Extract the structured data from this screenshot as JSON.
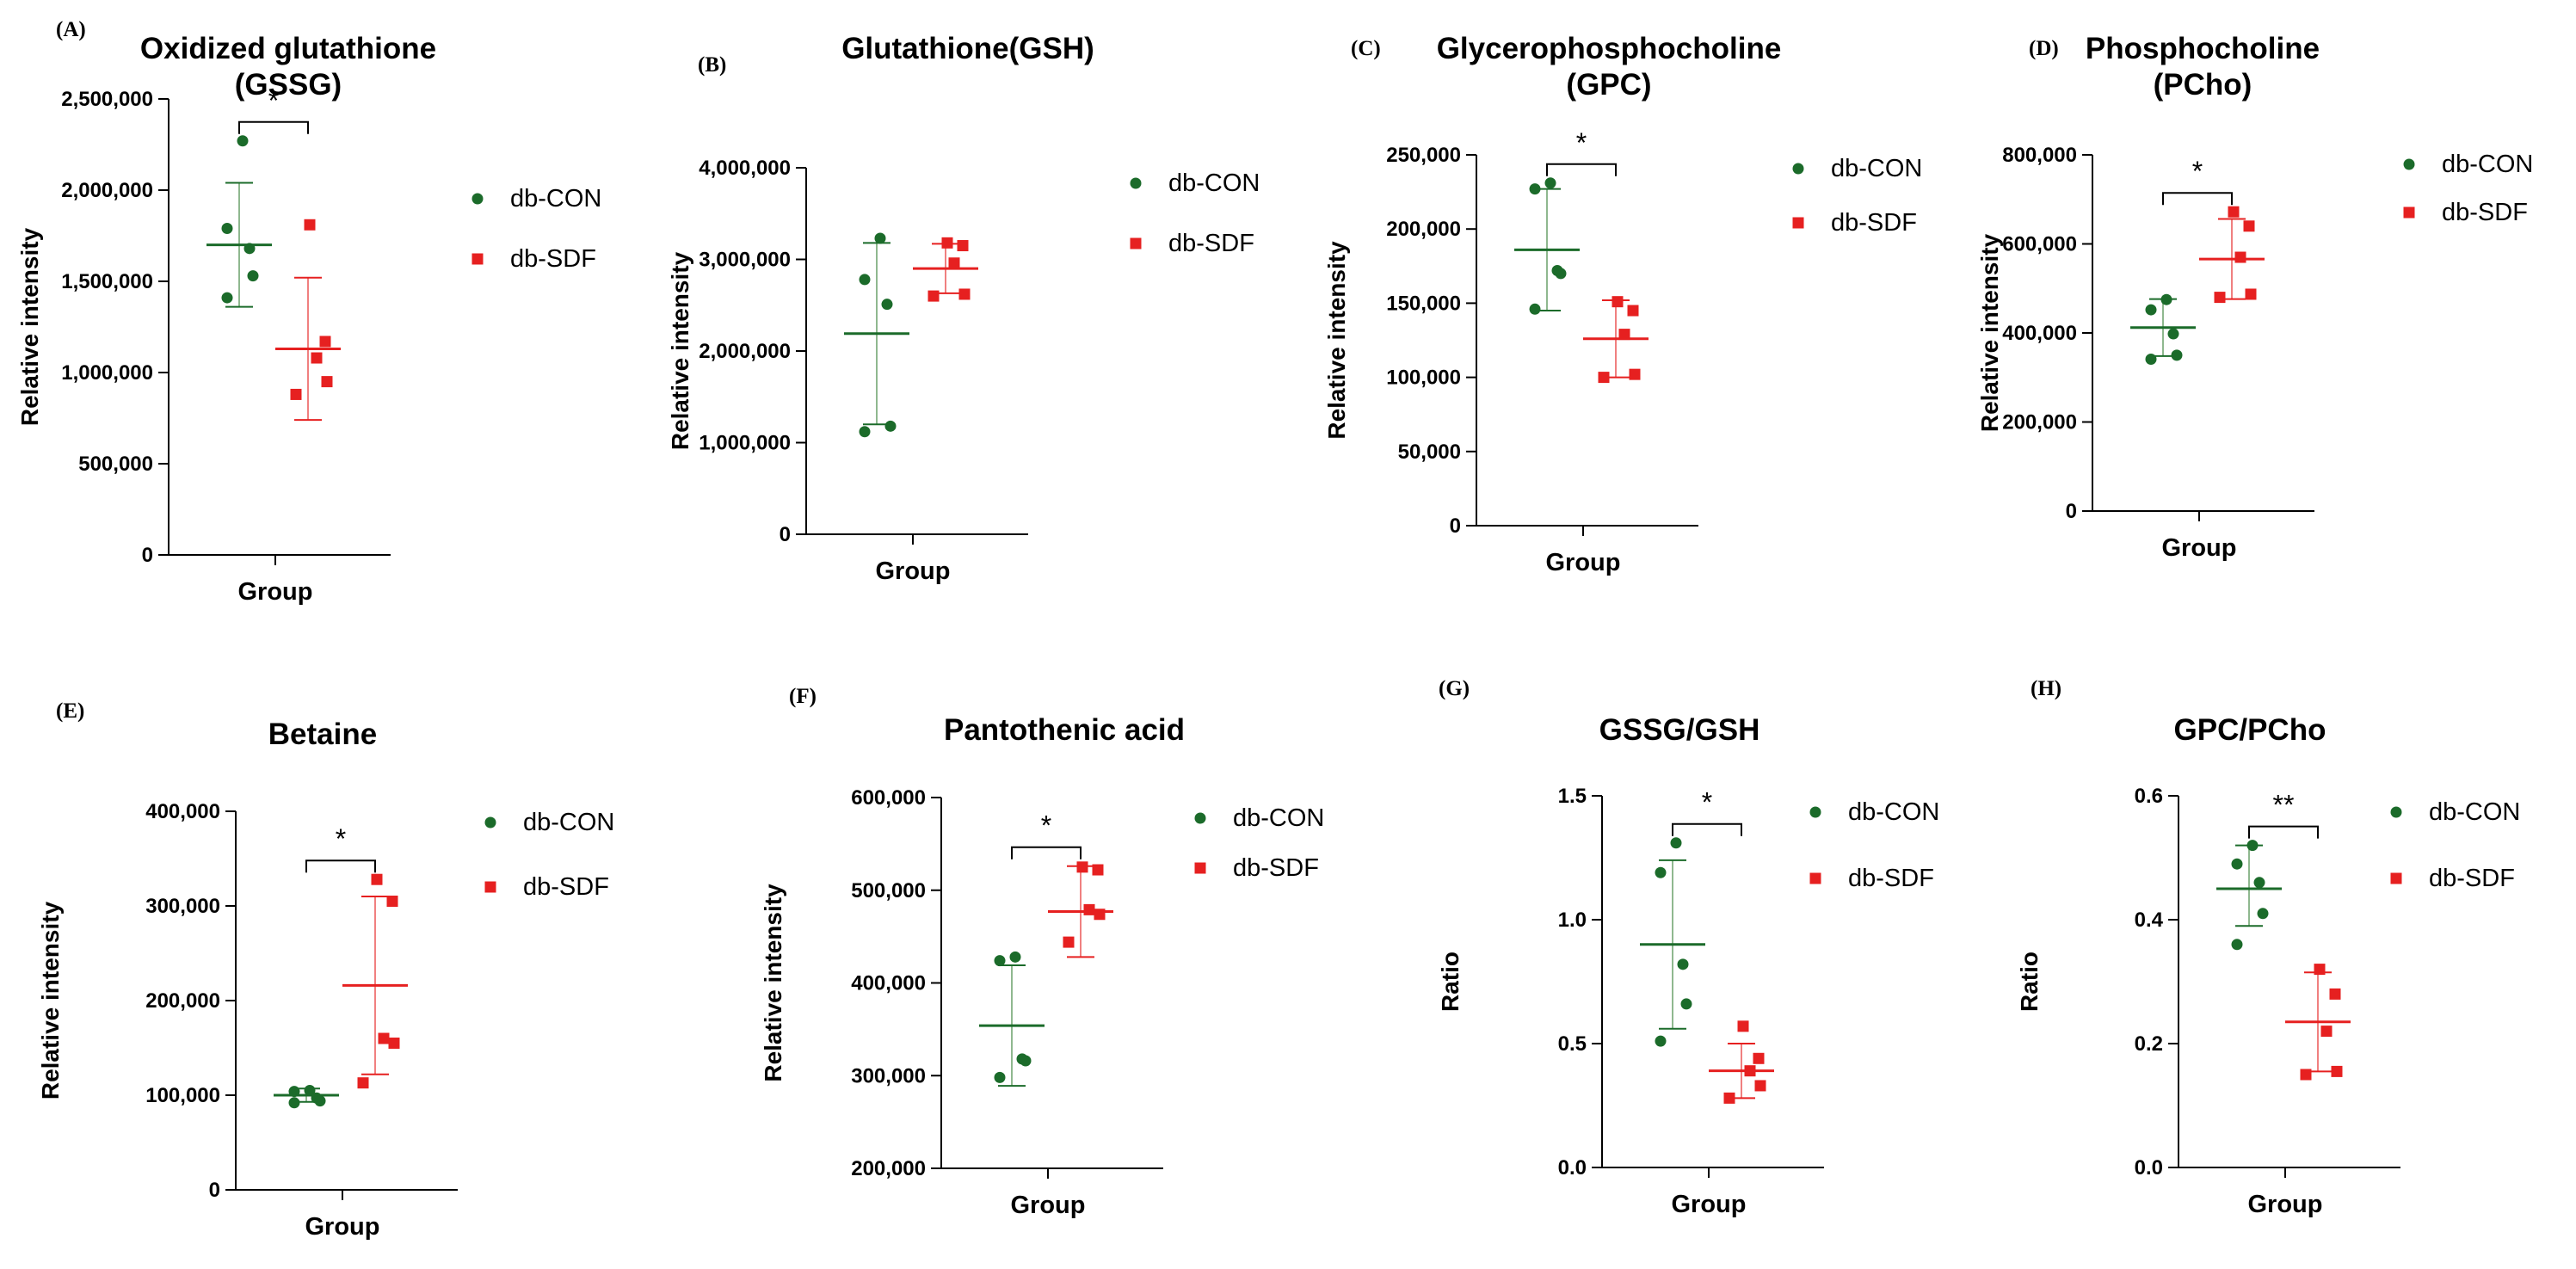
{
  "colors": {
    "con": "#1b6b2a",
    "con_light": "#8fb88f",
    "sdf": "#e62020",
    "sdf_light": "#f08080",
    "axis": "#000000"
  },
  "legend": {
    "con_label": "db-CON",
    "sdf_label": "db-SDF"
  },
  "chart_data": [
    {
      "type": "scatter",
      "panel": "(A)",
      "title_lines": [
        "Oxidized glutathione",
        "(GSSG)"
      ],
      "ylabel": "Relative intensity",
      "xlabel": "Group",
      "ylim": [
        0,
        2500000
      ],
      "yticks": [
        0,
        500000,
        1000000,
        1500000,
        2000000,
        2500000
      ],
      "ytick_labels": [
        "0",
        "500,000",
        "1,000,000",
        "1,500,000",
        "2,000,000",
        "2,500,000"
      ],
      "significance": "*",
      "series": [
        {
          "name": "db-CON",
          "values": [
            2270000,
            1790000,
            1680000,
            1530000,
            1410000
          ],
          "mean": 1700000,
          "sd_low": 1360000,
          "sd_high": 2040000
        },
        {
          "name": "db-SDF",
          "values": [
            1810000,
            1170000,
            1080000,
            950000,
            880000
          ],
          "mean": 1130000,
          "sd_low": 740000,
          "sd_high": 1520000
        }
      ]
    },
    {
      "type": "scatter",
      "panel": "(B)",
      "title_lines": [
        "Glutathione(GSH)"
      ],
      "ylabel": "Relative intensity",
      "xlabel": "Group",
      "ylim": [
        0,
        4000000
      ],
      "yticks": [
        0,
        1000000,
        2000000,
        3000000,
        4000000
      ],
      "ytick_labels": [
        "0",
        "1,000,000",
        "2,000,000",
        "3,000,000",
        "4,000,000"
      ],
      "significance": "",
      "series": [
        {
          "name": "db-CON",
          "values": [
            3230000,
            2780000,
            2510000,
            1180000,
            1120000
          ],
          "mean": 2190000,
          "sd_low": 1200000,
          "sd_high": 3180000
        },
        {
          "name": "db-SDF",
          "values": [
            3180000,
            3150000,
            2960000,
            2620000,
            2600000
          ],
          "mean": 2900000,
          "sd_low": 2630000,
          "sd_high": 3170000
        }
      ]
    },
    {
      "type": "scatter",
      "panel": "(C)",
      "title_lines": [
        "Glycerophosphocholine",
        "(GPC)"
      ],
      "ylabel": "Relative intensity",
      "xlabel": "Group",
      "ylim": [
        0,
        250000
      ],
      "yticks": [
        0,
        50000,
        100000,
        150000,
        200000,
        250000
      ],
      "ytick_labels": [
        "0",
        "50,000",
        "100,000",
        "150,000",
        "200,000",
        "250,000"
      ],
      "significance": "*",
      "series": [
        {
          "name": "db-CON",
          "values": [
            231000,
            227000,
            172000,
            170000,
            146000
          ],
          "mean": 186000,
          "sd_low": 145000,
          "sd_high": 227000
        },
        {
          "name": "db-SDF",
          "values": [
            151000,
            145000,
            129000,
            102000,
            100000
          ],
          "mean": 126000,
          "sd_low": 100000,
          "sd_high": 152000
        }
      ]
    },
    {
      "type": "scatter",
      "panel": "(D)",
      "title_lines": [
        "Phosphocholine",
        "(PCho)"
      ],
      "ylabel": "Relative intensity",
      "xlabel": "Group",
      "ylim": [
        0,
        800000
      ],
      "yticks": [
        0,
        200000,
        400000,
        600000,
        800000
      ],
      "ytick_labels": [
        "0",
        "200,000",
        "400,000",
        "600,000",
        "800,000"
      ],
      "significance": "*",
      "series": [
        {
          "name": "db-CON",
          "values": [
            475000,
            452000,
            398000,
            350000,
            341000
          ],
          "mean": 412000,
          "sd_low": 348000,
          "sd_high": 476000
        },
        {
          "name": "db-SDF",
          "values": [
            672000,
            640000,
            570000,
            487000,
            480000
          ],
          "mean": 566000,
          "sd_low": 476000,
          "sd_high": 656000
        }
      ]
    },
    {
      "type": "scatter",
      "panel": "(E)",
      "title_lines": [
        "Betaine"
      ],
      "ylabel": "Relative intensity",
      "xlabel": "Group",
      "ylim": [
        0,
        400000
      ],
      "yticks": [
        0,
        100000,
        200000,
        300000,
        400000
      ],
      "ytick_labels": [
        "0",
        "100,000",
        "200,000",
        "300,000",
        "400,000"
      ],
      "significance": "*",
      "series": [
        {
          "name": "db-CON",
          "values": [
            105000,
            104000,
            97000,
            94000,
            92000
          ],
          "mean": 100000,
          "sd_low": 93000,
          "sd_high": 107000
        },
        {
          "name": "db-SDF",
          "values": [
            328000,
            305000,
            160000,
            155000,
            113000
          ],
          "mean": 216000,
          "sd_low": 122000,
          "sd_high": 310000
        }
      ]
    },
    {
      "type": "scatter",
      "panel": "(F)",
      "title_lines": [
        "Pantothenic acid"
      ],
      "ylabel": "Relative intensity",
      "xlabel": "Group",
      "ylim": [
        200000,
        600000
      ],
      "yticks": [
        200000,
        300000,
        400000,
        500000,
        600000
      ],
      "ytick_labels": [
        "200,000",
        "300,000",
        "400,000",
        "500,000",
        "600,000"
      ],
      "significance": "*",
      "series": [
        {
          "name": "db-CON",
          "values": [
            428000,
            424000,
            318000,
            316000,
            298000
          ],
          "mean": 354000,
          "sd_low": 289000,
          "sd_high": 419000
        },
        {
          "name": "db-SDF",
          "values": [
            525000,
            522000,
            479000,
            474000,
            444000
          ],
          "mean": 477000,
          "sd_low": 428000,
          "sd_high": 526000
        }
      ]
    },
    {
      "type": "scatter",
      "panel": "(G)",
      "title_lines": [
        "GSSG/GSH"
      ],
      "ylabel": "Ratio",
      "xlabel": "Group",
      "ylim": [
        0,
        1.5
      ],
      "yticks": [
        0,
        0.5,
        1.0,
        1.5
      ],
      "ytick_labels": [
        "0.0",
        "0.5",
        "1.0",
        "1.5"
      ],
      "significance": "*",
      "series": [
        {
          "name": "db-CON",
          "values": [
            1.31,
            1.19,
            0.82,
            0.66,
            0.51
          ],
          "mean": 0.9,
          "sd_low": 0.56,
          "sd_high": 1.24
        },
        {
          "name": "db-SDF",
          "values": [
            0.57,
            0.44,
            0.39,
            0.33,
            0.28
          ],
          "mean": 0.39,
          "sd_low": 0.28,
          "sd_high": 0.5
        }
      ]
    },
    {
      "type": "scatter",
      "panel": "(H)",
      "title_lines": [
        "GPC/PCho"
      ],
      "ylabel": "Ratio",
      "xlabel": "Group",
      "ylim": [
        0,
        0.6
      ],
      "yticks": [
        0,
        0.2,
        0.4,
        0.6
      ],
      "ytick_labels": [
        "0.0",
        "0.2",
        "0.4",
        "0.6"
      ],
      "significance": "**",
      "series": [
        {
          "name": "db-CON",
          "values": [
            0.52,
            0.49,
            0.46,
            0.41,
            0.36
          ],
          "mean": 0.45,
          "sd_low": 0.39,
          "sd_high": 0.52
        },
        {
          "name": "db-SDF",
          "values": [
            0.32,
            0.28,
            0.22,
            0.155,
            0.15
          ],
          "mean": 0.235,
          "sd_low": 0.155,
          "sd_high": 0.315
        }
      ]
    }
  ]
}
